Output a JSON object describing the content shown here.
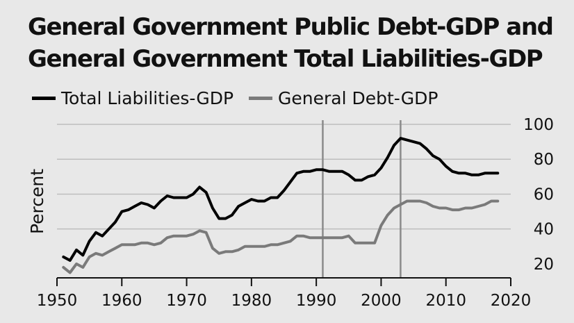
{
  "chart_data": {
    "type": "line",
    "title": "General Government Public Debt-GDP and General Government Total Liabilities-GDP",
    "title_lines": [
      "General Government Public Debt-GDP and",
      "General Government Total Liabilities-GDP"
    ],
    "ylabel": "Percent",
    "xlabel": "",
    "xlim": [
      1950,
      2020
    ],
    "ylim": [
      12,
      100
    ],
    "x_ticks": [
      1950,
      1960,
      1970,
      1980,
      1990,
      2000,
      2010,
      2020
    ],
    "y_ticks": [
      20,
      40,
      60,
      80,
      100
    ],
    "y_gridlines": [
      40,
      60,
      80,
      100
    ],
    "vertical_markers": [
      1991,
      2003
    ],
    "legend_position": "top-left",
    "series": [
      {
        "name": "Total Liabilities-GDP",
        "color": "#000000",
        "x": [
          1951,
          1952,
          1953,
          1954,
          1955,
          1956,
          1957,
          1958,
          1959,
          1960,
          1961,
          1962,
          1963,
          1964,
          1965,
          1966,
          1967,
          1968,
          1969,
          1970,
          1971,
          1972,
          1973,
          1974,
          1975,
          1976,
          1977,
          1978,
          1979,
          1980,
          1981,
          1982,
          1983,
          1984,
          1985,
          1986,
          1987,
          1988,
          1989,
          1990,
          1991,
          1992,
          1993,
          1994,
          1995,
          1996,
          1997,
          1998,
          1999,
          2000,
          2001,
          2002,
          2003,
          2004,
          2005,
          2006,
          2007,
          2008,
          2009,
          2010,
          2011,
          2012,
          2013,
          2014,
          2015,
          2016,
          2017,
          2018
        ],
        "values": [
          24,
          22,
          28,
          25,
          33,
          38,
          36,
          40,
          44,
          50,
          51,
          53,
          55,
          54,
          52,
          56,
          59,
          58,
          58,
          58,
          60,
          64,
          61,
          52,
          46,
          46,
          48,
          53,
          55,
          57,
          56,
          56,
          58,
          58,
          62,
          67,
          72,
          73,
          73,
          74,
          74,
          73,
          73,
          73,
          71,
          68,
          68,
          70,
          71,
          75,
          81,
          88,
          92,
          91,
          90,
          89,
          86,
          82,
          80,
          76,
          73,
          72,
          72,
          71,
          71,
          72,
          72,
          72
        ],
        "legend_label": "Total Liabilities-GDP"
      },
      {
        "name": "General Debt-GDP",
        "color": "#7a7a7a",
        "x": [
          1951,
          1952,
          1953,
          1954,
          1955,
          1956,
          1957,
          1958,
          1959,
          1960,
          1961,
          1962,
          1963,
          1964,
          1965,
          1966,
          1967,
          1968,
          1969,
          1970,
          1971,
          1972,
          1973,
          1974,
          1975,
          1976,
          1977,
          1978,
          1979,
          1980,
          1981,
          1982,
          1983,
          1984,
          1985,
          1986,
          1987,
          1988,
          1989,
          1990,
          1991,
          1992,
          1993,
          1994,
          1995,
          1996,
          1997,
          1998,
          1999,
          2000,
          2001,
          2002,
          2003,
          2004,
          2005,
          2006,
          2007,
          2008,
          2009,
          2010,
          2011,
          2012,
          2013,
          2014,
          2015,
          2016,
          2017,
          2018
        ],
        "values": [
          18,
          15,
          20,
          18,
          24,
          26,
          25,
          27,
          29,
          31,
          31,
          31,
          32,
          32,
          31,
          32,
          35,
          36,
          36,
          36,
          37,
          39,
          38,
          29,
          26,
          27,
          27,
          28,
          30,
          30,
          30,
          30,
          31,
          31,
          32,
          33,
          36,
          36,
          35,
          35,
          35,
          35,
          35,
          35,
          36,
          32,
          32,
          32,
          32,
          42,
          48,
          52,
          54,
          56,
          56,
          56,
          55,
          53,
          52,
          52,
          51,
          51,
          52,
          52,
          53,
          54,
          56,
          56
        ],
        "legend_label": "General Debt-GDP"
      }
    ]
  }
}
